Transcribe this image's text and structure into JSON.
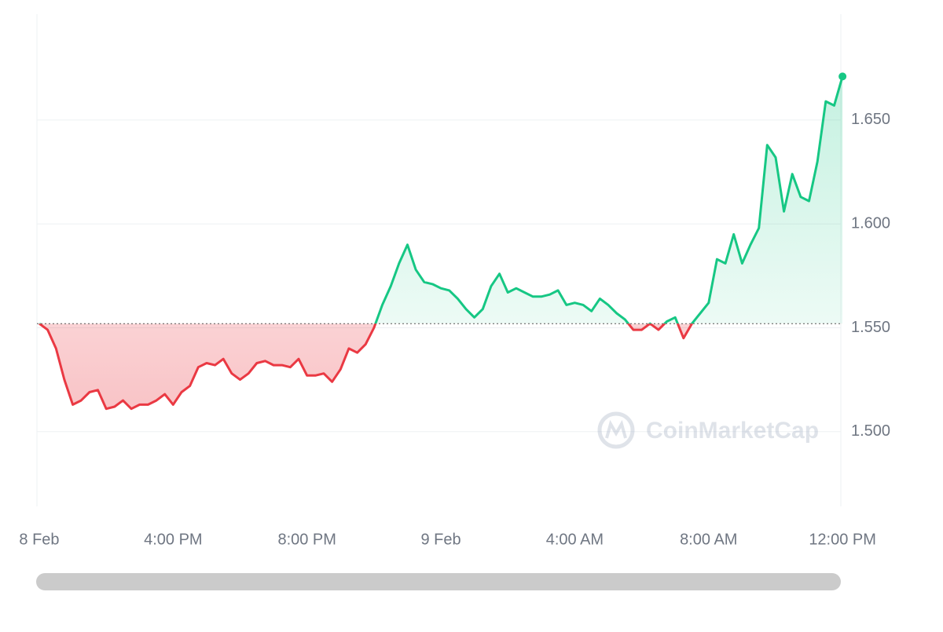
{
  "chart_data": {
    "type": "line",
    "watermark": "CoinMarketCap",
    "x": [
      0,
      0.25,
      0.5,
      0.75,
      1,
      1.25,
      1.5,
      1.75,
      2,
      2.25,
      2.5,
      2.75,
      3,
      3.25,
      3.5,
      3.75,
      4,
      4.25,
      4.5,
      4.75,
      5,
      5.25,
      5.5,
      5.75,
      6,
      6.25,
      6.5,
      6.75,
      7,
      7.25,
      7.5,
      7.75,
      8,
      8.25,
      8.5,
      8.75,
      9,
      9.25,
      9.5,
      9.75,
      10,
      10.25,
      10.5,
      10.75,
      11,
      11.25,
      11.5,
      11.75,
      12,
      12.25,
      12.5,
      12.75,
      13,
      13.25,
      13.5,
      13.75,
      14,
      14.25,
      14.5,
      14.75,
      15,
      15.25,
      15.5,
      15.75,
      16,
      16.25,
      16.5,
      16.75,
      17,
      17.25,
      17.5,
      17.75,
      18,
      18.25,
      18.5,
      18.75,
      19,
      19.25,
      19.5,
      19.75,
      20,
      20.25,
      20.5,
      20.75,
      21,
      21.25,
      21.5,
      21.75,
      22,
      22.25,
      22.5,
      22.75,
      23,
      23.25,
      23.5,
      23.75,
      24
    ],
    "values": [
      1.552,
      1.549,
      1.54,
      1.525,
      1.513,
      1.515,
      1.519,
      1.52,
      1.511,
      1.512,
      1.515,
      1.511,
      1.513,
      1.513,
      1.515,
      1.518,
      1.513,
      1.519,
      1.522,
      1.531,
      1.533,
      1.532,
      1.535,
      1.528,
      1.525,
      1.528,
      1.533,
      1.534,
      1.532,
      1.532,
      1.531,
      1.535,
      1.527,
      1.527,
      1.528,
      1.524,
      1.53,
      1.54,
      1.538,
      1.542,
      1.55,
      1.561,
      1.57,
      1.581,
      1.59,
      1.578,
      1.572,
      1.571,
      1.569,
      1.568,
      1.564,
      1.559,
      1.555,
      1.559,
      1.57,
      1.576,
      1.567,
      1.569,
      1.567,
      1.565,
      1.565,
      1.566,
      1.568,
      1.561,
      1.562,
      1.561,
      1.558,
      1.564,
      1.561,
      1.557,
      1.554,
      1.549,
      1.549,
      1.552,
      1.549,
      1.553,
      1.555,
      1.545,
      1.552,
      1.557,
      1.562,
      1.583,
      1.581,
      1.595,
      1.581,
      1.59,
      1.598,
      1.638,
      1.632,
      1.606,
      1.624,
      1.613,
      1.611,
      1.63,
      1.659,
      1.657,
      1.671
    ],
    "baseline": 1.552,
    "up_color": "#16c784",
    "down_color": "#ea3943",
    "xlim": [
      -0.07,
      23.95
    ],
    "xticks": [
      {
        "value": 0,
        "label": "8 Feb"
      },
      {
        "value": 4,
        "label": "4:00 PM"
      },
      {
        "value": 8,
        "label": "8:00 PM"
      },
      {
        "value": 12,
        "label": "9 Feb"
      },
      {
        "value": 16,
        "label": "4:00 AM"
      },
      {
        "value": 20,
        "label": "8:00 AM"
      },
      {
        "value": 24,
        "label": "12:00 PM"
      }
    ],
    "ylim": [
      1.464,
      1.701
    ],
    "yticks": [
      {
        "value": 1.5,
        "label": "1.500"
      },
      {
        "value": 1.55,
        "label": "1.550"
      },
      {
        "value": 1.6,
        "label": "1.600"
      },
      {
        "value": 1.65,
        "label": "1.650"
      }
    ],
    "grid": true
  }
}
